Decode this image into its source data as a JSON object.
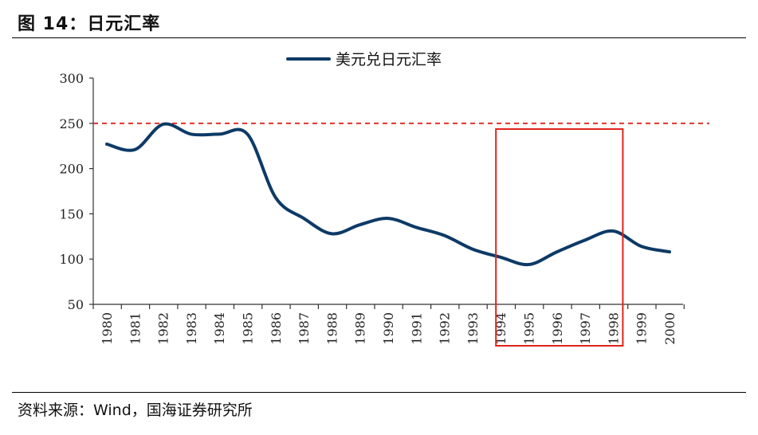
{
  "header": {
    "figure_title": "图 14：日元汇率"
  },
  "footer": {
    "source": "资料来源：Wind，国海证券研究所"
  },
  "colors": {
    "line": "#0d3a66",
    "reference_line": "#e0241b",
    "highlight_box": "#e0241b",
    "axis": "#333333"
  },
  "chart_data": {
    "type": "line",
    "legend_position": "top-center",
    "grid": false,
    "categories": [
      "1980",
      "1981",
      "1982",
      "1983",
      "1984",
      "1985",
      "1986",
      "1987",
      "1988",
      "1989",
      "1990",
      "1991",
      "1992",
      "1993",
      "1994",
      "1995",
      "1996",
      "1997",
      "1998",
      "1999",
      "2000"
    ],
    "series": [
      {
        "name": "美元兑日元汇率",
        "values": [
          227,
          221,
          249,
          238,
          238,
          238,
          168,
          145,
          128,
          138,
          145,
          135,
          126,
          111,
          102,
          94,
          108,
          121,
          131,
          114,
          108
        ]
      }
    ],
    "ylim": [
      50,
      300
    ],
    "yticks": [
      "50",
      "100",
      "150",
      "200",
      "250",
      "300"
    ],
    "reference_line": {
      "y": 250,
      "style": "dashed"
    },
    "highlight_range": {
      "from": "1994",
      "to": "1998"
    }
  }
}
